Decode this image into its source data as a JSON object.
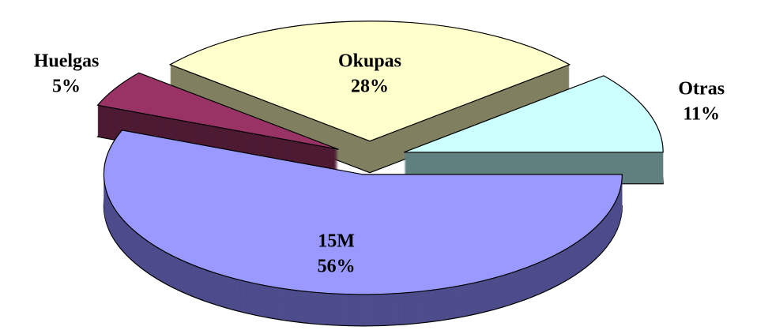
{
  "chart_data": {
    "type": "pie",
    "categories": [
      "15M",
      "Huelgas",
      "Okupas",
      "Otras"
    ],
    "values": [
      56,
      5,
      28,
      11
    ],
    "value_labels": [
      "56%",
      "5%",
      "28%",
      "11%"
    ],
    "colors": [
      "#9999ff",
      "#993366",
      "#ffffcc",
      "#ccffff"
    ],
    "side_colors": [
      "#4d4d8c",
      "#4d1a33",
      "#808060",
      "#608080"
    ]
  }
}
